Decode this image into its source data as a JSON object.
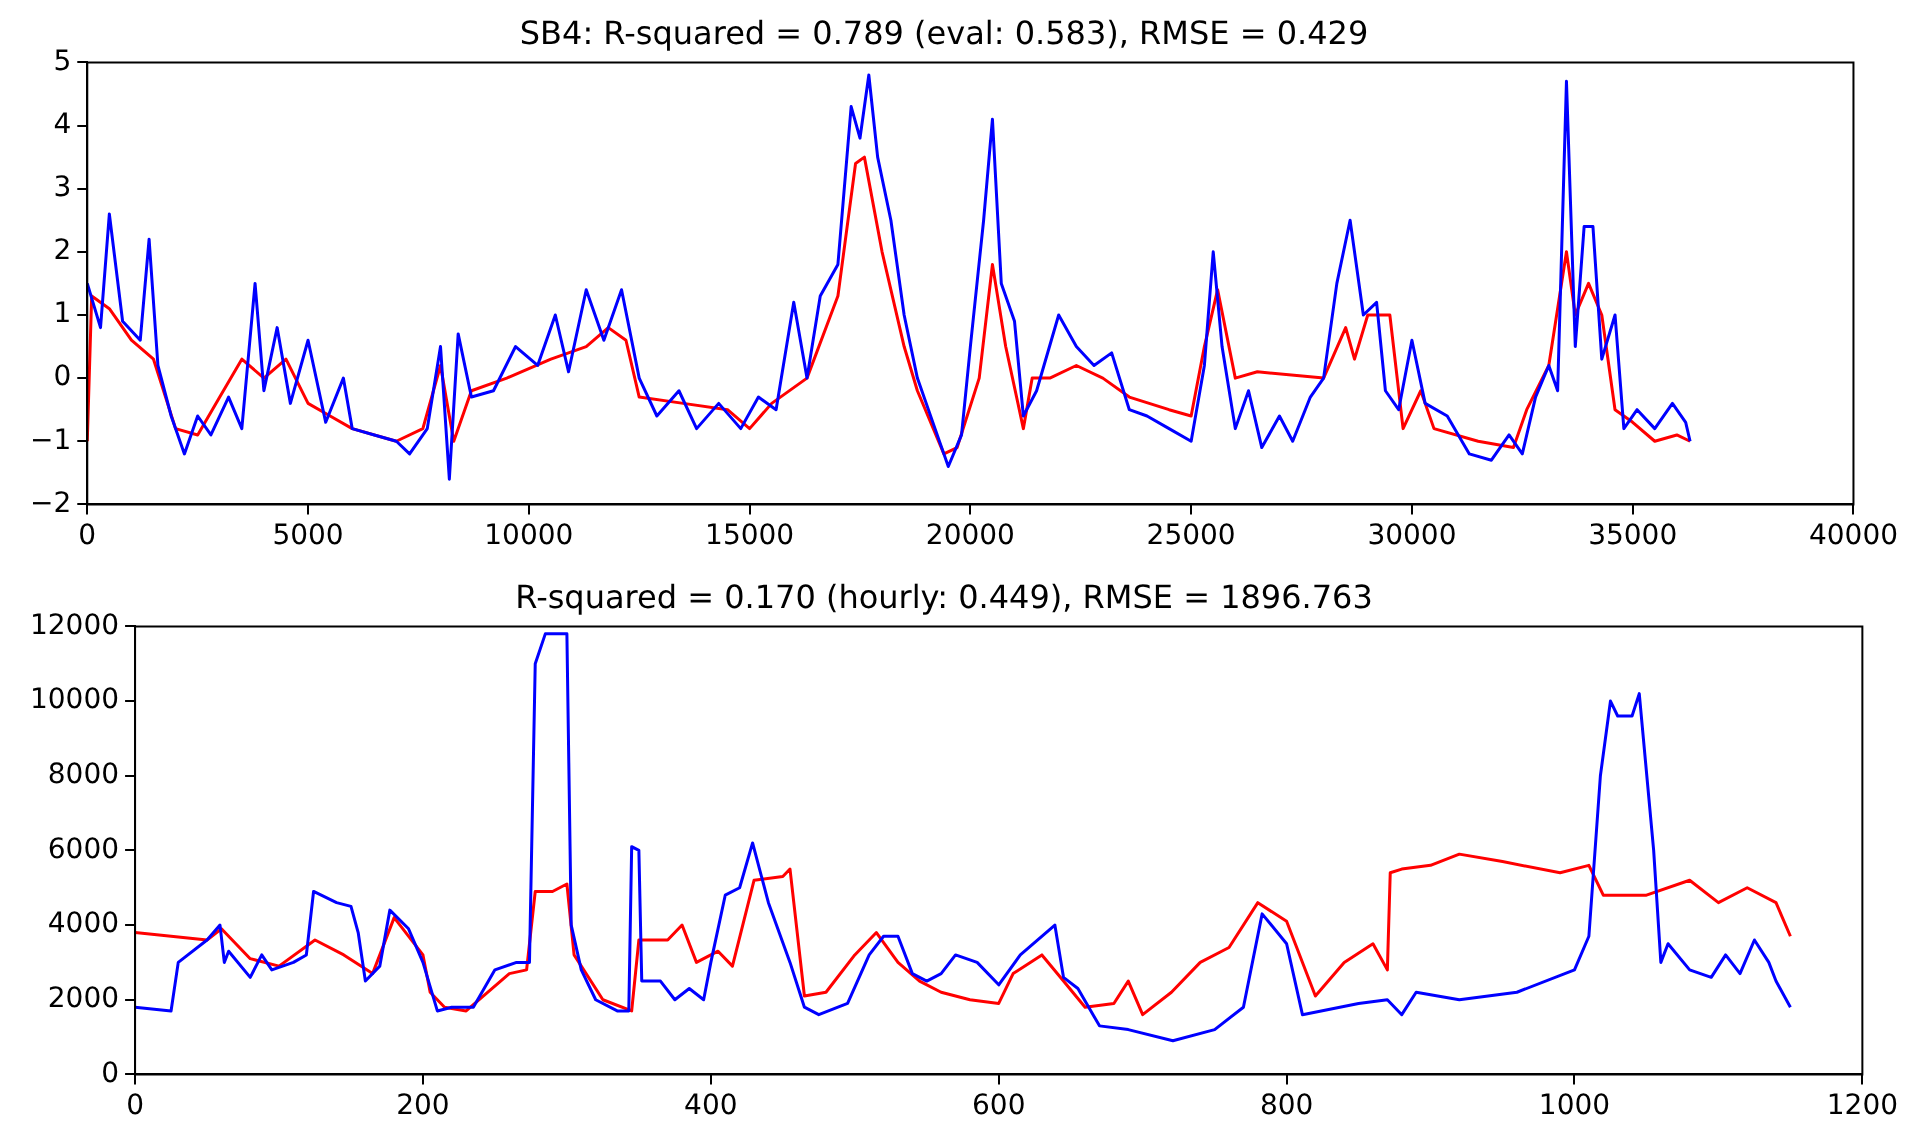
{
  "chart_data": [
    {
      "type": "line",
      "title": "SB4: R-squared = 0.789 (eval: 0.583), RMSE = 0.429",
      "xlim": [
        0,
        40000
      ],
      "xticks": [
        0,
        5000,
        10000,
        15000,
        20000,
        25000,
        30000,
        35000,
        40000
      ],
      "ylim": [
        -2,
        5
      ],
      "yticks": [
        {
          "value": -2,
          "label": "−2"
        },
        {
          "value": -1,
          "label": "−1"
        },
        0,
        1,
        2,
        3,
        4,
        5
      ],
      "series": [
        {
          "color": "#0000ff",
          "x": [
            0,
            300,
            500,
            800,
            1200,
            1400,
            1600,
            1900,
            2200,
            2500,
            2800,
            3200,
            3500,
            3800,
            4000,
            4300,
            4600,
            5000,
            5400,
            5800,
            6000,
            6500,
            7000,
            7300,
            7700,
            8000,
            8200,
            8400,
            8700,
            9200,
            9700,
            10200,
            10600,
            10900,
            11300,
            11700,
            12100,
            12500,
            12900,
            13400,
            13800,
            14300,
            14800,
            15200,
            15600,
            16000,
            16300,
            16600,
            17000,
            17300,
            17500,
            17700,
            17900,
            18200,
            18500,
            18800,
            19200,
            19500,
            19800,
            20000,
            20300,
            20500,
            20700,
            21000,
            21200,
            21500,
            22000,
            22400,
            22800,
            23200,
            23600,
            24000,
            24500,
            25000,
            25300,
            25500,
            25700,
            26000,
            26300,
            26600,
            27000,
            27300,
            27700,
            28000,
            28300,
            28600,
            28900,
            29200,
            29400,
            29700,
            30000,
            30300,
            30800,
            31300,
            31800,
            32200,
            32500,
            32800,
            33100,
            33300,
            33500,
            33700,
            33900,
            34100,
            34300,
            34600,
            34800,
            35100,
            35500,
            35900,
            36200,
            36300
          ],
          "values": [
            1.5,
            0.8,
            2.6,
            0.9,
            0.6,
            2.2,
            0.2,
            -0.6,
            -1.2,
            -0.6,
            -0.9,
            -0.3,
            -0.8,
            1.5,
            -0.2,
            0.8,
            -0.4,
            0.6,
            -0.7,
            0,
            -0.8,
            -0.9,
            -1,
            -1.2,
            -0.8,
            0.5,
            -1.6,
            0.7,
            -0.3,
            -0.2,
            0.5,
            0.2,
            1,
            0.1,
            1.4,
            0.6,
            1.4,
            0,
            -0.6,
            -0.2,
            -0.8,
            -0.4,
            -0.8,
            -0.3,
            -0.5,
            1.2,
            0,
            1.3,
            1.8,
            4.3,
            3.8,
            4.8,
            3.5,
            2.5,
            1,
            0,
            -0.8,
            -1.4,
            -0.9,
            0.5,
            2.5,
            4.1,
            1.5,
            0.9,
            -0.6,
            -0.2,
            1,
            0.5,
            0.2,
            0.4,
            -0.5,
            -0.6,
            -0.8,
            -1,
            0.2,
            2,
            0.5,
            -0.8,
            -0.2,
            -1.1,
            -0.6,
            -1,
            -0.3,
            0,
            1.5,
            2.5,
            1,
            1.2,
            -0.2,
            -0.5,
            0.6,
            -0.4,
            -0.6,
            -1.2,
            -1.3,
            -0.9,
            -1.2,
            -0.3,
            0.2,
            -0.2,
            4.7,
            0.5,
            2.4,
            2.4,
            0.3,
            1,
            -0.8,
            -0.5,
            -0.8,
            -0.4,
            -0.7,
            -1
          ]
        },
        {
          "color": "#ff0000",
          "x": [
            0,
            100,
            500,
            1000,
            1500,
            2000,
            2500,
            3000,
            3500,
            4000,
            4500,
            5000,
            5500,
            6000,
            7000,
            7600,
            8000,
            8300,
            8700,
            9500,
            10500,
            11300,
            11800,
            12200,
            12500,
            13500,
            14500,
            15000,
            15500,
            16300,
            17000,
            17400,
            17600,
            18000,
            18500,
            18800,
            19400,
            19700,
            20200,
            20500,
            20800,
            21200,
            21400,
            21800,
            22400,
            23000,
            23600,
            24500,
            25000,
            25300,
            25600,
            26000,
            26500,
            28000,
            28500,
            28700,
            29000,
            29500,
            29800,
            30200,
            30500,
            31500,
            32300,
            32600,
            33100,
            33500,
            33700,
            34000,
            34300,
            34600,
            35000,
            35500,
            36000,
            36300
          ],
          "values": [
            -1,
            1.3,
            1.1,
            0.6,
            0.3,
            -0.8,
            -0.9,
            -0.3,
            0.3,
            0,
            0.3,
            -0.4,
            -0.6,
            -0.8,
            -1,
            -0.8,
            0.2,
            -1,
            -0.2,
            0,
            0.3,
            0.5,
            0.8,
            0.6,
            -0.3,
            -0.4,
            -0.5,
            -0.8,
            -0.4,
            0,
            1.3,
            3.4,
            3.5,
            2,
            0.5,
            -0.2,
            -1.2,
            -1.1,
            0,
            1.8,
            0.5,
            -0.8,
            0,
            0,
            0.2,
            0,
            -0.3,
            -0.5,
            -0.6,
            0.5,
            1.4,
            0,
            0.1,
            0,
            0.8,
            0.3,
            1,
            1,
            -0.8,
            -0.2,
            -0.8,
            -1,
            -1.1,
            -0.5,
            0.2,
            2,
            1,
            1.5,
            1,
            -0.5,
            -0.7,
            -1,
            -0.9,
            -1
          ]
        }
      ]
    },
    {
      "type": "line",
      "title": "R-squared = 0.170 (hourly: 0.449), RMSE = 1896.763",
      "xlim": [
        0,
        1200
      ],
      "xticks": [
        0,
        200,
        400,
        600,
        800,
        1000,
        1200
      ],
      "ylim": [
        0,
        12000
      ],
      "yticks": [
        0,
        2000,
        4000,
        6000,
        8000,
        10000,
        12000
      ],
      "series": [
        {
          "color": "#0000ff",
          "x": [
            0,
            25,
            30,
            50,
            59,
            62,
            65,
            80,
            88,
            95,
            110,
            119,
            124,
            140,
            150,
            155,
            160,
            170,
            177,
            190,
            200,
            210,
            220,
            235,
            250,
            265,
            274,
            278,
            285,
            300,
            303,
            310,
            320,
            335,
            343,
            345,
            350,
            352,
            365,
            375,
            385,
            395,
            400,
            410,
            420,
            429,
            440,
            455,
            465,
            475,
            495,
            510,
            520,
            530,
            540,
            550,
            560,
            570,
            585,
            600,
            615,
            639,
            645,
            655,
            670,
            690,
            721,
            750,
            770,
            783,
            800,
            811,
            850,
            870,
            880,
            890,
            920,
            960,
            1000,
            1010,
            1018,
            1025,
            1030,
            1040,
            1045,
            1055,
            1060,
            1065,
            1080,
            1095,
            1105,
            1115,
            1125,
            1135,
            1140,
            1150
          ],
          "values": [
            1800,
            1700,
            3000,
            3600,
            4000,
            3000,
            3300,
            2600,
            3200,
            2800,
            3000,
            3200,
            4900,
            4600,
            4500,
            3800,
            2500,
            2900,
            4400,
            3900,
            3000,
            1700,
            1800,
            1800,
            2800,
            3000,
            3000,
            11000,
            11800,
            11800,
            4000,
            2800,
            2000,
            1700,
            1700,
            6100,
            6000,
            2500,
            2500,
            2000,
            2300,
            2000,
            3000,
            4800,
            5000,
            6200,
            4600,
            3000,
            1800,
            1600,
            1900,
            3200,
            3700,
            3700,
            2700,
            2500,
            2700,
            3200,
            3000,
            2400,
            3200,
            4000,
            2600,
            2300,
            1300,
            1200,
            900,
            1200,
            1800,
            4300,
            3500,
            1600,
            1900,
            2000,
            1600,
            2200,
            2000,
            2200,
            2800,
            3700,
            8000,
            10000,
            9600,
            9600,
            10200,
            6000,
            3000,
            3500,
            2800,
            2600,
            3200,
            2700,
            3600,
            3000,
            2500,
            1800
          ]
        },
        {
          "color": "#ff0000",
          "x": [
            0,
            50,
            60,
            80,
            100,
            125,
            145,
            165,
            180,
            200,
            205,
            215,
            230,
            260,
            272,
            278,
            290,
            300,
            305,
            325,
            345,
            350,
            370,
            380,
            390,
            405,
            415,
            430,
            450,
            455,
            465,
            480,
            500,
            515,
            530,
            545,
            560,
            580,
            600,
            610,
            630,
            645,
            660,
            680,
            690,
            700,
            720,
            740,
            760,
            780,
            800,
            820,
            840,
            860,
            870,
            872,
            880,
            900,
            920,
            950,
            990,
            1010,
            1020,
            1050,
            1080,
            1100,
            1120,
            1140,
            1150
          ],
          "values": [
            3800,
            3600,
            3900,
            3100,
            2900,
            3600,
            3200,
            2700,
            4200,
            3200,
            2200,
            1800,
            1700,
            2700,
            2800,
            4900,
            4900,
            5100,
            3200,
            2000,
            1700,
            3600,
            3600,
            4000,
            3000,
            3300,
            2900,
            5200,
            5300,
            5500,
            2100,
            2200,
            3200,
            3800,
            3000,
            2500,
            2200,
            2000,
            1900,
            2700,
            3200,
            2500,
            1800,
            1900,
            2500,
            1600,
            2200,
            3000,
            3400,
            4600,
            4100,
            2100,
            3000,
            3500,
            2800,
            5400,
            5500,
            5600,
            5900,
            5700,
            5400,
            5600,
            4800,
            4800,
            5200,
            4600,
            5000,
            4600,
            3700
          ]
        }
      ]
    }
  ]
}
